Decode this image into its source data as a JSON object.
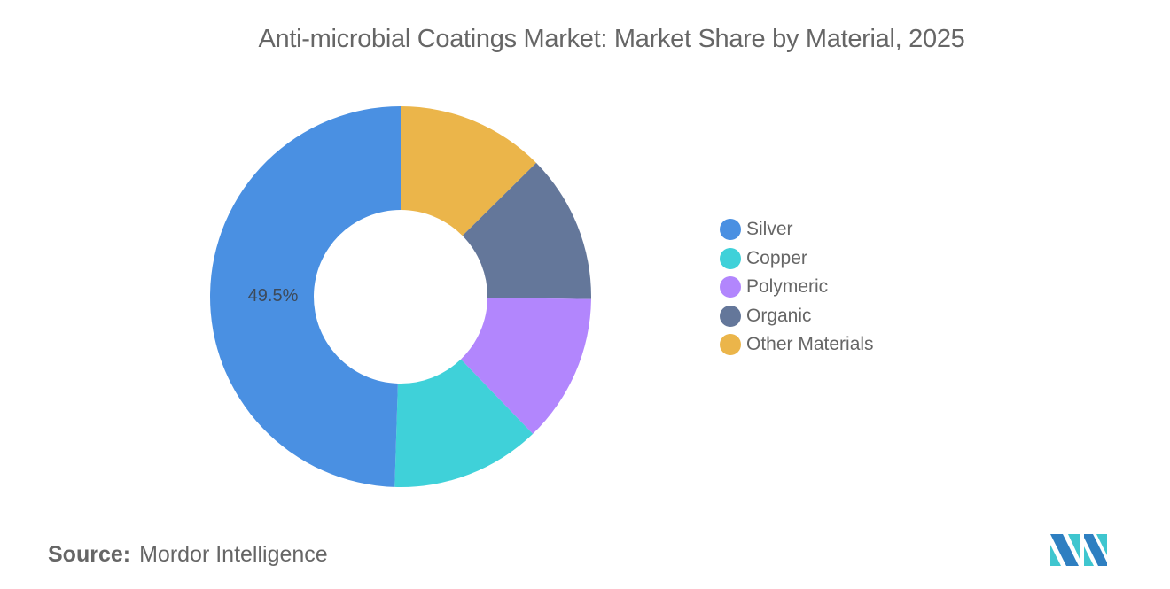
{
  "title": "Anti-microbial Coatings Market: Market Share by Material, 2025",
  "chart_data": {
    "type": "pie",
    "variant": "donut",
    "title": "Anti-microbial Coatings Market: Market Share by Material, 2025",
    "start_angle_deg": 0,
    "direction": "clockwise",
    "slices": [
      {
        "label": "Other Materials",
        "value": 12.6,
        "color": "#EBB54A"
      },
      {
        "label": "Organic",
        "value": 12.6,
        "color": "#64779A"
      },
      {
        "label": "Polymeric",
        "value": 12.6,
        "color": "#B286FD"
      },
      {
        "label": "Copper",
        "value": 12.7,
        "color": "#3FD1D9"
      },
      {
        "label": "Silver",
        "value": 49.5,
        "color": "#4A90E2"
      }
    ],
    "data_labels": [
      {
        "label": "Silver",
        "text": "49.5%"
      }
    ],
    "legend": {
      "position": "right",
      "entries": [
        "Silver",
        "Copper",
        "Polymeric",
        "Organic",
        "Other Materials"
      ]
    }
  },
  "legend": [
    {
      "label": "Silver",
      "color": "#4A90E2"
    },
    {
      "label": "Copper",
      "color": "#3FD1D9"
    },
    {
      "label": "Polymeric",
      "color": "#B286FD"
    },
    {
      "label": "Organic",
      "color": "#64779A"
    },
    {
      "label": "Other Materials",
      "color": "#EBB54A"
    }
  ],
  "data_label": "49.5%",
  "source": {
    "key": "Source:",
    "value": "Mordor Intelligence"
  }
}
